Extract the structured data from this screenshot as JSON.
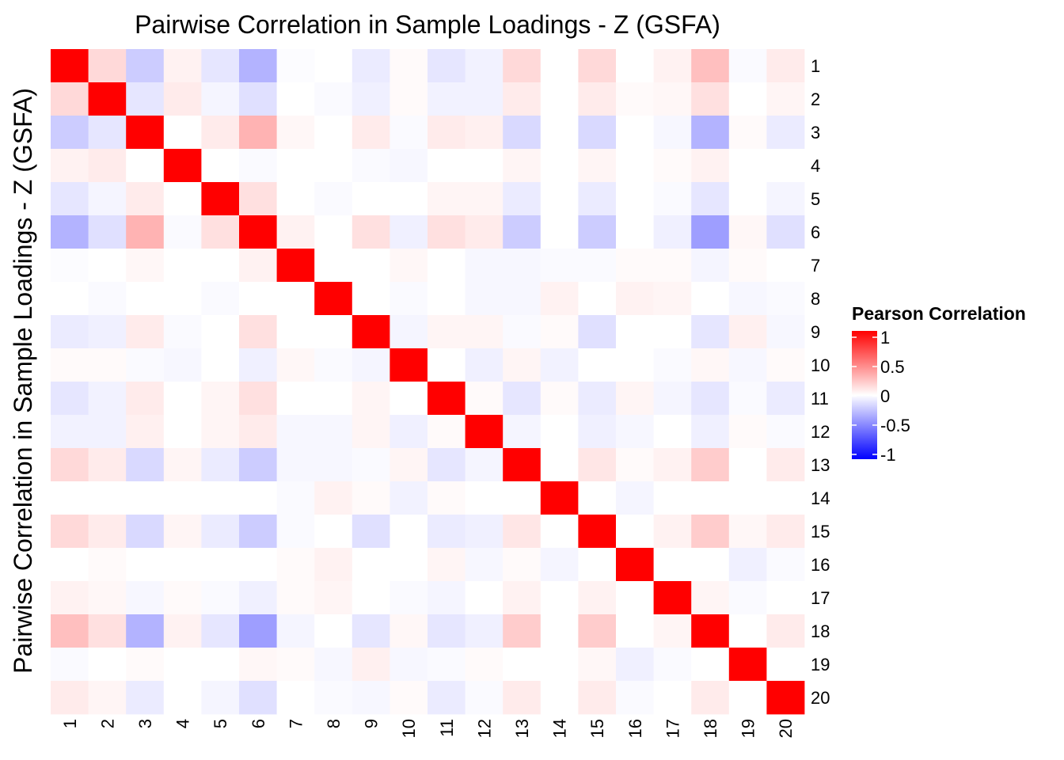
{
  "chart_data": {
    "type": "heatmap",
    "title": "Pairwise Correlation in Sample Loadings - Z (GSFA)",
    "xlabel": "",
    "ylabel": "Pairwise Correlation in Sample Loadings - Z (GSFA)",
    "x_labels": [
      "1",
      "2",
      "3",
      "4",
      "5",
      "6",
      "7",
      "8",
      "9",
      "10",
      "11",
      "12",
      "13",
      "14",
      "15",
      "16",
      "17",
      "18",
      "19",
      "20"
    ],
    "y_labels": [
      "1",
      "2",
      "3",
      "4",
      "5",
      "6",
      "7",
      "8",
      "9",
      "10",
      "11",
      "12",
      "13",
      "14",
      "15",
      "16",
      "17",
      "18",
      "19",
      "20"
    ],
    "legend": {
      "title": "Pearson Correlation",
      "ticks": [
        1,
        0.5,
        0,
        -0.5,
        -1
      ],
      "tick_labels": [
        "1",
        "0.5",
        "0",
        "-0.5",
        "-1"
      ],
      "colors": {
        "low": "#0000ff",
        "mid": "#ffffff",
        "high": "#ff0000"
      },
      "placement": "right"
    },
    "range": [
      -1,
      1
    ],
    "values": [
      [
        1.0,
        0.15,
        -0.2,
        0.05,
        -0.1,
        -0.3,
        -0.01,
        0.0,
        -0.08,
        0.02,
        -0.1,
        -0.05,
        0.15,
        0.0,
        0.15,
        0.0,
        0.05,
        0.25,
        -0.02,
        0.08
      ],
      [
        0.15,
        1.0,
        -0.1,
        0.08,
        -0.04,
        -0.12,
        0.0,
        -0.02,
        -0.06,
        0.02,
        -0.05,
        -0.05,
        0.08,
        0.0,
        0.08,
        0.02,
        0.03,
        0.12,
        0.0,
        0.04
      ],
      [
        -0.2,
        -0.1,
        1.0,
        0.0,
        0.08,
        0.3,
        0.03,
        0.0,
        0.08,
        -0.02,
        0.08,
        0.06,
        -0.15,
        0.0,
        -0.15,
        0.0,
        -0.03,
        -0.3,
        0.02,
        -0.08
      ],
      [
        0.05,
        0.08,
        0.0,
        1.0,
        0.0,
        -0.02,
        0.0,
        0.0,
        -0.02,
        -0.03,
        0.0,
        0.0,
        0.04,
        0.0,
        0.04,
        0.0,
        0.02,
        0.05,
        0.0,
        0.0
      ],
      [
        -0.1,
        -0.04,
        0.08,
        0.0,
        1.0,
        0.12,
        0.0,
        -0.02,
        0.0,
        0.0,
        0.04,
        0.04,
        -0.08,
        0.0,
        -0.08,
        0.0,
        -0.02,
        -0.1,
        0.0,
        -0.04
      ],
      [
        -0.3,
        -0.12,
        0.3,
        -0.02,
        0.12,
        1.0,
        0.05,
        0.0,
        0.12,
        -0.06,
        0.12,
        0.08,
        -0.2,
        0.0,
        -0.2,
        0.0,
        -0.06,
        -0.38,
        0.03,
        -0.12
      ],
      [
        -0.01,
        0.0,
        0.03,
        0.0,
        0.0,
        0.05,
        1.0,
        0.0,
        0.0,
        0.03,
        0.0,
        -0.03,
        -0.03,
        -0.02,
        -0.02,
        0.02,
        0.02,
        -0.04,
        0.02,
        0.0
      ],
      [
        0.0,
        -0.02,
        0.0,
        0.0,
        -0.02,
        0.0,
        0.0,
        1.0,
        0.0,
        -0.02,
        0.0,
        -0.03,
        -0.03,
        0.05,
        0.0,
        0.05,
        0.04,
        0.0,
        -0.03,
        -0.02
      ],
      [
        -0.08,
        -0.06,
        0.08,
        -0.02,
        0.0,
        0.12,
        0.0,
        0.0,
        1.0,
        -0.04,
        0.04,
        0.04,
        -0.02,
        0.02,
        -0.12,
        0.0,
        0.0,
        -0.1,
        0.06,
        -0.03
      ],
      [
        0.02,
        0.02,
        -0.02,
        -0.03,
        0.0,
        -0.06,
        0.03,
        -0.02,
        -0.04,
        1.0,
        0.0,
        -0.06,
        0.04,
        -0.05,
        0.0,
        0.0,
        -0.02,
        0.03,
        -0.03,
        0.02
      ],
      [
        -0.1,
        -0.05,
        0.08,
        0.0,
        0.04,
        0.12,
        0.0,
        0.0,
        0.04,
        0.0,
        1.0,
        0.02,
        -0.1,
        0.02,
        -0.08,
        0.04,
        -0.04,
        -0.1,
        -0.02,
        -0.08
      ],
      [
        -0.05,
        -0.05,
        0.06,
        0.0,
        0.04,
        0.08,
        -0.03,
        -0.03,
        0.04,
        -0.06,
        0.02,
        1.0,
        -0.04,
        0.0,
        -0.06,
        -0.03,
        0.0,
        -0.06,
        0.02,
        -0.02
      ],
      [
        0.15,
        0.08,
        -0.15,
        0.04,
        -0.08,
        -0.2,
        -0.03,
        -0.03,
        -0.02,
        0.04,
        -0.1,
        -0.04,
        1.0,
        0.0,
        0.1,
        0.02,
        0.05,
        0.2,
        0.0,
        0.08
      ],
      [
        0.0,
        0.0,
        0.0,
        0.0,
        0.0,
        0.0,
        -0.02,
        0.05,
        0.02,
        -0.05,
        0.02,
        0.0,
        0.0,
        1.0,
        0.0,
        -0.04,
        0.0,
        0.0,
        0.0,
        0.0
      ],
      [
        0.15,
        0.08,
        -0.15,
        0.04,
        -0.08,
        -0.2,
        -0.02,
        0.0,
        -0.12,
        0.0,
        -0.08,
        -0.06,
        0.1,
        0.0,
        1.0,
        0.0,
        0.05,
        0.2,
        0.03,
        0.08
      ],
      [
        0.0,
        0.02,
        0.0,
        0.0,
        0.0,
        0.0,
        0.02,
        0.05,
        0.0,
        0.0,
        0.04,
        -0.03,
        0.02,
        -0.04,
        0.0,
        1.0,
        0.0,
        0.0,
        -0.06,
        -0.02
      ],
      [
        0.05,
        0.03,
        -0.03,
        0.02,
        -0.02,
        -0.06,
        0.02,
        0.04,
        0.0,
        -0.02,
        -0.04,
        0.0,
        0.05,
        0.0,
        0.05,
        0.0,
        1.0,
        0.04,
        -0.02,
        0.0
      ],
      [
        0.25,
        0.12,
        -0.3,
        0.05,
        -0.1,
        -0.38,
        -0.04,
        0.0,
        -0.1,
        0.03,
        -0.1,
        -0.06,
        0.2,
        0.0,
        0.2,
        0.0,
        0.04,
        1.0,
        0.0,
        0.08
      ],
      [
        -0.02,
        0.0,
        0.02,
        0.0,
        0.0,
        0.03,
        0.02,
        -0.03,
        0.06,
        -0.03,
        -0.02,
        0.02,
        0.0,
        0.0,
        0.03,
        -0.06,
        -0.02,
        0.0,
        1.0,
        0.0
      ],
      [
        0.08,
        0.04,
        -0.08,
        0.0,
        -0.04,
        -0.12,
        0.0,
        -0.02,
        -0.03,
        0.02,
        -0.08,
        -0.02,
        0.08,
        0.0,
        0.08,
        -0.02,
        0.0,
        0.08,
        0.0,
        1.0
      ]
    ]
  }
}
